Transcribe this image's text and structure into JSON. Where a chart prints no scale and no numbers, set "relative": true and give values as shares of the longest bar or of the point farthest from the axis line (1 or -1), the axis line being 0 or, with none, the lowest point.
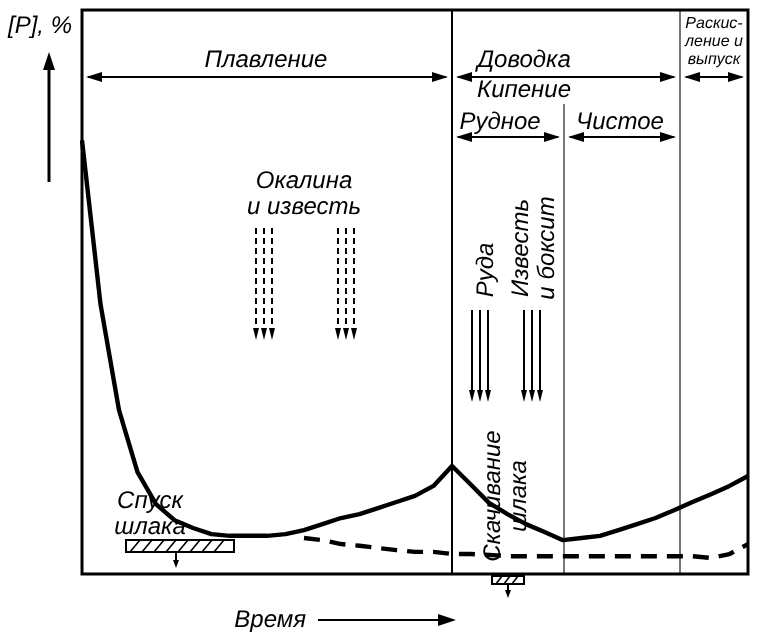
{
  "chart_data": {
    "type": "line",
    "relative": true,
    "xlabel": "Время",
    "ylabel": "[P], %",
    "marker": "none",
    "categories": [
      null,
      null,
      null,
      null,
      null,
      null,
      null,
      null,
      null,
      null,
      null,
      null,
      null,
      null,
      null,
      null,
      null,
      null,
      null,
      null,
      null,
      null,
      null,
      null,
      null,
      null,
      null,
      null,
      null,
      null,
      null,
      null,
      null,
      null,
      null,
      null,
      null
    ],
    "series": [
      {
        "color": "#000000",
        "line_style": "solid",
        "values": [
          1,
          0.622,
          0.378,
          0.235,
          0.161,
          0.124,
          0.106,
          0.092,
          0.088,
          0.088,
          0.088,
          0.092,
          0.101,
          0.115,
          0.129,
          0.138,
          0.152,
          0.166,
          0.18,
          0.203,
          0.249,
          0.207,
          0.164,
          0.138,
          0.115,
          0.097,
          0.078,
          0.083,
          0.088,
          0.101,
          0.115,
          0.129,
          0.147,
          0.166,
          0.184,
          0.203,
          0.226
        ]
      },
      {
        "color": "#000000",
        "line_style": "dashed",
        "values": [
          null,
          null,
          null,
          null,
          null,
          null,
          null,
          null,
          null,
          null,
          null,
          null,
          0.083,
          0.078,
          0.069,
          0.065,
          0.06,
          0.055,
          0.051,
          0.051,
          0.046,
          0.046,
          0.044,
          0.041,
          0.041,
          0.041,
          0.041,
          0.041,
          0.041,
          0.041,
          0.041,
          0.041,
          0.041,
          0.041,
          0.037,
          0.046,
          0.069
        ]
      }
    ],
    "annotations": [
      "Плавление",
      "Доводка",
      "Кипение",
      "Рудное",
      "Чистое",
      "Раскис-\nление и\nвыпуск",
      "Окалина\nи известь",
      "Руда",
      "Известь\nи боксит",
      "Спуск\nшлака",
      "Скачивание\nшлака"
    ]
  }
}
